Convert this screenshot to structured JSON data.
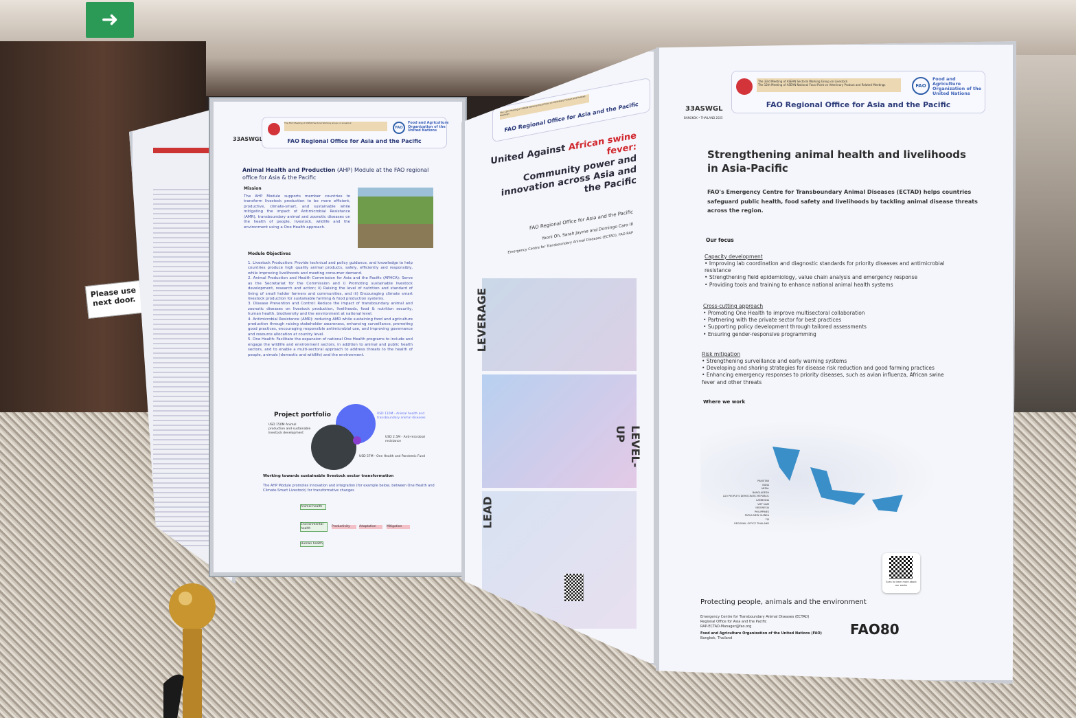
{
  "scene": {
    "exit_sign_icon": "running-man-exit-icon",
    "sign_text": "Please use next door."
  },
  "common_header": {
    "meeting_line1": "The 33rd Meeting of ASEAN Sectoral Working Group on Livestock",
    "meeting_line2": "The 12th Meeting of ASEAN National Focal Point on Veterinary Product and Related Meetings",
    "office": "FAO Regional Office for Asia and the Pacific",
    "fao_name": "Food and Agriculture Organization of the United Nations",
    "event_logo": "33ASWGL",
    "event_place": "BANGKOK • THAILAND 2025",
    "fao_logo_text": "FAO"
  },
  "poster_ahp": {
    "title_bold": "Animal Health and Production",
    "title_rest": " (AHP) Module at the FAO regional office for Asia & the Pacific",
    "mission_heading": "Mission",
    "mission_text": "The AHP Module supports member countries to transform livestock production to be more efficient, productive, climate-smart, and sustainable while mitigating the impact of Antimicrobial Resistance (AMR), transboundary animal and zoonotic diseases on the health of people, livestock, wildlife and the environment using a One Health approach.",
    "objectives_heading": "Module Objectives",
    "objectives": [
      "1. Livestock Production: Provide technical and policy guidance, and knowledge to help countries produce high quality animal products, safely, efficiently and responsibly, while improving livelihoods and meeting consumer demand.",
      "2. Animal Production and Health Commission for Asia and the Pacific (APHCA): Serve as the Secretariat for the Commission and i) Promoting sustainable livestock development, research and action; ii) Raising the level of nutrition and standard of living of small holder farmers and communities, and iii) Encouraging climate smart livestock production for sustainable farming & food production systems.",
      "3. Disease Prevention and Control: Reduce the impact of transboundary animal and zoonotic diseases on livestock production, livelihoods, food & nutrition security, human health, biodiversity and the environment at national level.",
      "4. Antimicrobial Resistance (AMR): reducing AMR while sustaining food and agriculture production through raising stakeholder awareness, enhancing surveillance, promoting good practices, encouraging responsible antimicrobial use, and improving governance and resource allocation at country level.",
      "5. One Health: Facilitate the expansion of national One Health programs to include and engage the wildlife and environment sectors, in addition to animal and public health sectors, and to enable a multi-sectoral approach to address threats to the health of people, animals (domestic and wildlife) and the environment."
    ],
    "portfolio_heading": "Project portfolio",
    "portfolio_items": [
      "USD 150M Animal production and sustainable livestock development",
      "USD 110M - Animal health and transboundary animal diseases",
      "USD 2.5M - Anti-microbial resistance",
      "USD 57M - One Health and Pandemic Fund"
    ],
    "sustainable_heading": "Working towards sustainable livestock sector transformation",
    "sustainable_text": "The AHP Module promotes innovation and integration (for example below, between One Health and Climate-Smart Livestock) for transformative changes",
    "diagram_labels": [
      "Animal health",
      "Environmental health",
      "Human health",
      "Productivity",
      "Adaptation",
      "Mitigation"
    ]
  },
  "poster_asf": {
    "title_pre": "United Against ",
    "title_red": "African swine fever:",
    "title_rest": "Community power and innovation across Asia and the Pacific",
    "office": "FAO Regional Office for Asia and the Pacific",
    "authors": "Yooni Oh, Sarah Jayme and Domingo Caro III",
    "affiliation": "Emergency Centre for Transboundary Animal Diseases (ECTAD), FAO RAP",
    "section_words": [
      "LEVERAGE",
      "LEVEL-UP",
      "LEAD"
    ],
    "accent_red": "#d0282e"
  },
  "poster_ectad": {
    "title": "Strengthening animal health and livelihoods in Asia-Pacific",
    "intro": "FAO's Emergency Centre for Transboundary Animal Diseases (ECTAD) helps countries safeguard public health, food safety and livelihoods by tackling animal disease threats across the region.",
    "focus_heading": "Our focus",
    "sections": [
      {
        "heading": "Capacity development",
        "items": [
          "Improving lab coordination and diagnostic standards for priority diseases and antimicrobial resistance",
          "Strengthening field epidemiology, value chain analysis and emergency response",
          "Providing tools and training to enhance national animal health systems"
        ]
      },
      {
        "heading": "Cross-cutting approach",
        "items": [
          "Promoting One Health to improve multisectoral collaboration",
          "Partnering with the private sector for best practices",
          "Supporting policy development through tailored assessments",
          "Ensuring gender-responsive programming"
        ]
      },
      {
        "heading": "Risk mitigation",
        "items": [
          "Strengthening surveillance and early warning systems",
          "Developing and sharing strategies for disease risk reduction and good farming practices",
          "Enhancing emergency responses to priority diseases, such as avian influenza, African swine fever and other threats"
        ]
      }
    ],
    "where_heading": "Where we work",
    "map_countries": [
      "PAKISTAN",
      "INDIA",
      "NEPAL",
      "BANGLADESH",
      "LAO PEOPLE'S DEMOCRATIC REPUBLIC",
      "CAMBODIA",
      "VIET NAM",
      "INDONESIA",
      "PHILIPPINES",
      "PAPUA NEW GUINEA",
      "FIJI",
      "REGIONAL OFFICE THAILAND"
    ],
    "qr_caption": "Scan to learn more about our works",
    "tagline": "Protecting people, animals and the environment",
    "contact": [
      "Emergency Centre for Transboundary Animal Diseases (ECTAD)",
      "Regional Office for Asia and the Pacific",
      "RAP-ECTAD-Manager@fao.org"
    ],
    "org": "Food and Agriculture Organization of the United Nations (FAO)",
    "city": "Bangkok, Thailand",
    "fao80": "FAO80",
    "map_color": "#3a8fc8"
  }
}
